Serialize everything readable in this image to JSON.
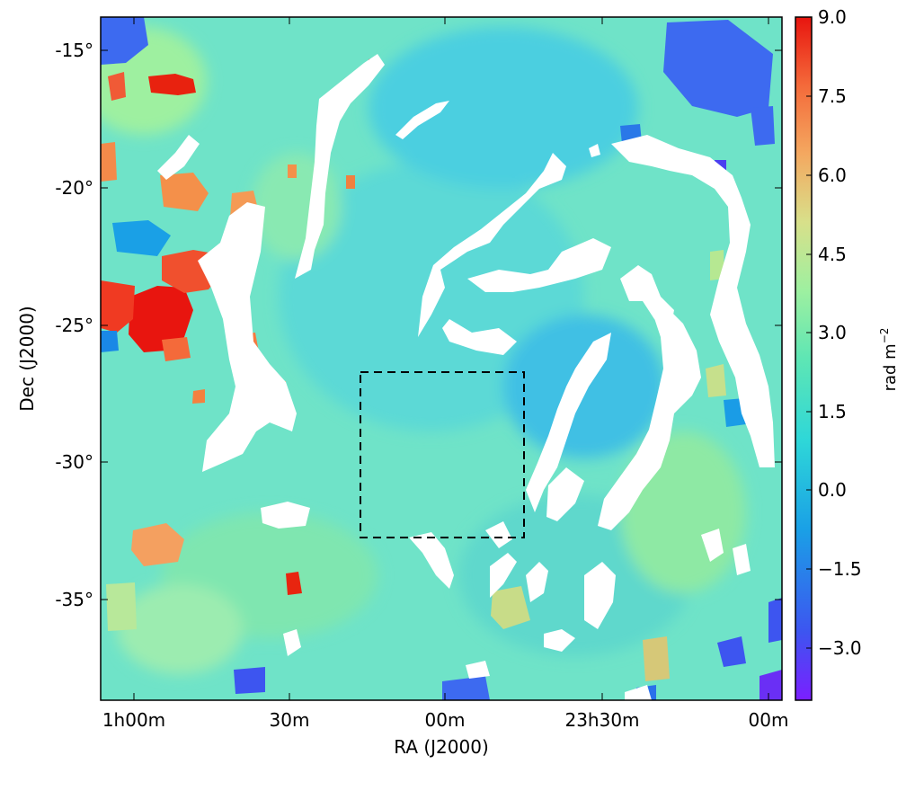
{
  "axes": {
    "xlabel": "RA (J2000)",
    "ylabel": "Dec (J2000)",
    "x_ticks": [
      "1h00m",
      "30m",
      "00m",
      "23h30m",
      "00m"
    ],
    "y_ticks": [
      "-15°",
      "-20°",
      "-25°",
      "-30°",
      "-35°"
    ]
  },
  "colorbar": {
    "label": "rad m",
    "label_exponent": "−2",
    "ticks": [
      "9.0",
      "7.5",
      "6.0",
      "4.5",
      "3.0",
      "1.5",
      "0.0",
      "−1.5",
      "−3.0"
    ],
    "vmin": -4.5,
    "vmax": 9.0,
    "colors": [
      "#7b1fff",
      "#3d55f0",
      "#1aa0e6",
      "#2ed7d8",
      "#5ee6b4",
      "#9ef0a0",
      "#d8e08a",
      "#f4a860",
      "#f46a3a",
      "#e8150f"
    ]
  },
  "map": {
    "colormap": "rainbow",
    "background_value_color": "#6fe3c8",
    "masked_color": "#ffffff"
  }
}
